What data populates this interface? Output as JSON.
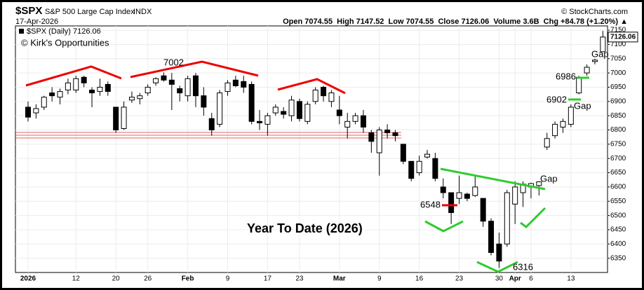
{
  "header": {
    "symbol": "$SPX",
    "name": "S&P 500 Large Cap Index",
    "exchange": "INDX",
    "source": "© StockCharts.com",
    "date": "17-Apr-2026",
    "quote": "Open 7074.55  High 7147.52  Low 7074.55  Close 7126.06  Volume 3.6B  Chg +84.78 (+1.20%) ▲"
  },
  "chart_data": {
    "type": "candlestick",
    "legend": "$SPX (Daily) 7126.06",
    "watermark": "© Kirk's Opportunities",
    "up_color": "#ffffff",
    "down_color": "#000000",
    "grid": true,
    "categories": [
      "2026",
      null,
      null,
      null,
      null,
      null,
      "12",
      null,
      null,
      null,
      null,
      "20",
      null,
      null,
      null,
      "26",
      null,
      null,
      null,
      null,
      "Feb",
      null,
      null,
      null,
      null,
      "9",
      null,
      null,
      null,
      null,
      "17",
      null,
      null,
      null,
      "23",
      null,
      null,
      null,
      null,
      "Mar",
      null,
      null,
      null,
      null,
      "9",
      null,
      null,
      null,
      null,
      "16",
      null,
      null,
      null,
      null,
      "23",
      null,
      null,
      null,
      null,
      "30",
      null,
      "Apr",
      null,
      "6",
      null,
      null,
      null,
      null,
      "13",
      null,
      null,
      null,
      null
    ],
    "open": [
      6880,
      6860,
      6880,
      6930,
      6915,
      6940,
      6940,
      6985,
      6940,
      6935,
      6960,
      6880,
      6805,
      6905,
      6910,
      6930,
      6965,
      6990,
      6975,
      6945,
      6920,
      6990,
      6920,
      6840,
      6820,
      6935,
      6975,
      6970,
      6960,
      6830,
      6820,
      6860,
      6865,
      6850,
      6900,
      6830,
      6900,
      6950,
      6900,
      6870,
      6810,
      6830,
      6850,
      6790,
      6720,
      6800,
      6790,
      6750,
      6690,
      6650,
      6705,
      6700,
      6600,
      6580,
      6560,
      6575,
      6570,
      6560,
      6480,
      6400,
      6400,
      6540,
      6580,
      6600,
      6605,
      6740,
      6780,
      6810,
      6820,
      6930,
      7000,
      7040,
      7074.55
    ],
    "high": [
      6900,
      6890,
      6920,
      6950,
      6945,
      6980,
      6990,
      6990,
      6950,
      6980,
      6970,
      6880,
      6900,
      6935,
      6930,
      6960,
      6985,
      7002,
      7000,
      6955,
      6990,
      7000,
      6950,
      6860,
      6940,
      6975,
      6990,
      6990,
      6970,
      6870,
      6860,
      6890,
      6880,
      6920,
      6910,
      6900,
      6950,
      6955,
      6940,
      6920,
      6860,
      6860,
      6870,
      6800,
      6810,
      6820,
      6800,
      6750,
      6690,
      6710,
      6730,
      6720,
      6630,
      6580,
      6640,
      6580,
      6640,
      6560,
      6490,
      6440,
      6590,
      6620,
      6620,
      6615,
      6620,
      6790,
      6830,
      6840,
      6890,
      6990,
      7030,
      7050,
      7147.52
    ],
    "low": [
      6830,
      6840,
      6870,
      6900,
      6890,
      6925,
      6930,
      6950,
      6880,
      6920,
      6920,
      6790,
      6800,
      6895,
      6890,
      6920,
      6955,
      6970,
      6870,
      6900,
      6900,
      6880,
      6850,
      6780,
      6810,
      6920,
      6950,
      6930,
      6820,
      6800,
      6780,
      6850,
      6840,
      6830,
      6830,
      6820,
      6890,
      6900,
      6880,
      6820,
      6770,
      6820,
      6790,
      6720,
      6640,
      6770,
      6760,
      6680,
      6620,
      6640,
      6700,
      6620,
      6560,
      6470,
      6540,
      6550,
      6565,
      6460,
      6360,
      6316,
      6390,
      6470,
      6530,
      6560,
      6570,
      6730,
      6770,
      6790,
      6810,
      6925,
      6990,
      7030,
      7074.55
    ],
    "close": [
      6845,
      6875,
      6915,
      6920,
      6935,
      6965,
      6980,
      6965,
      6930,
      6950,
      6935,
      6800,
      6880,
      6915,
      6920,
      6950,
      6980,
      6975,
      6960,
      6930,
      6980,
      6920,
      6880,
      6800,
      6930,
      6965,
      6955,
      6950,
      6830,
      6825,
      6850,
      6880,
      6855,
      6905,
      6840,
      6890,
      6940,
      6920,
      6930,
      6850,
      6830,
      6850,
      6810,
      6760,
      6800,
      6790,
      6780,
      6690,
      6630,
      6690,
      6715,
      6630,
      6580,
      6510,
      6580,
      6560,
      6600,
      6480,
      6370,
      6340,
      6580,
      6600,
      6610,
      6612,
      6618,
      6770,
      6820,
      6830,
      6880,
      6985,
      7020,
      7045,
      7126.06
    ],
    "ylim": [
      6300,
      7165
    ],
    "yticks": [
      6350,
      6400,
      6450,
      6500,
      6550,
      6600,
      6650,
      6700,
      6750,
      6800,
      6850,
      6900,
      6950,
      7000,
      7050,
      7100,
      7150
    ],
    "annotations": [
      "7002",
      "6548",
      "6316",
      "6986",
      "6902",
      "Gap",
      "Gap",
      "Gap",
      "Year To Date (2026)"
    ]
  }
}
